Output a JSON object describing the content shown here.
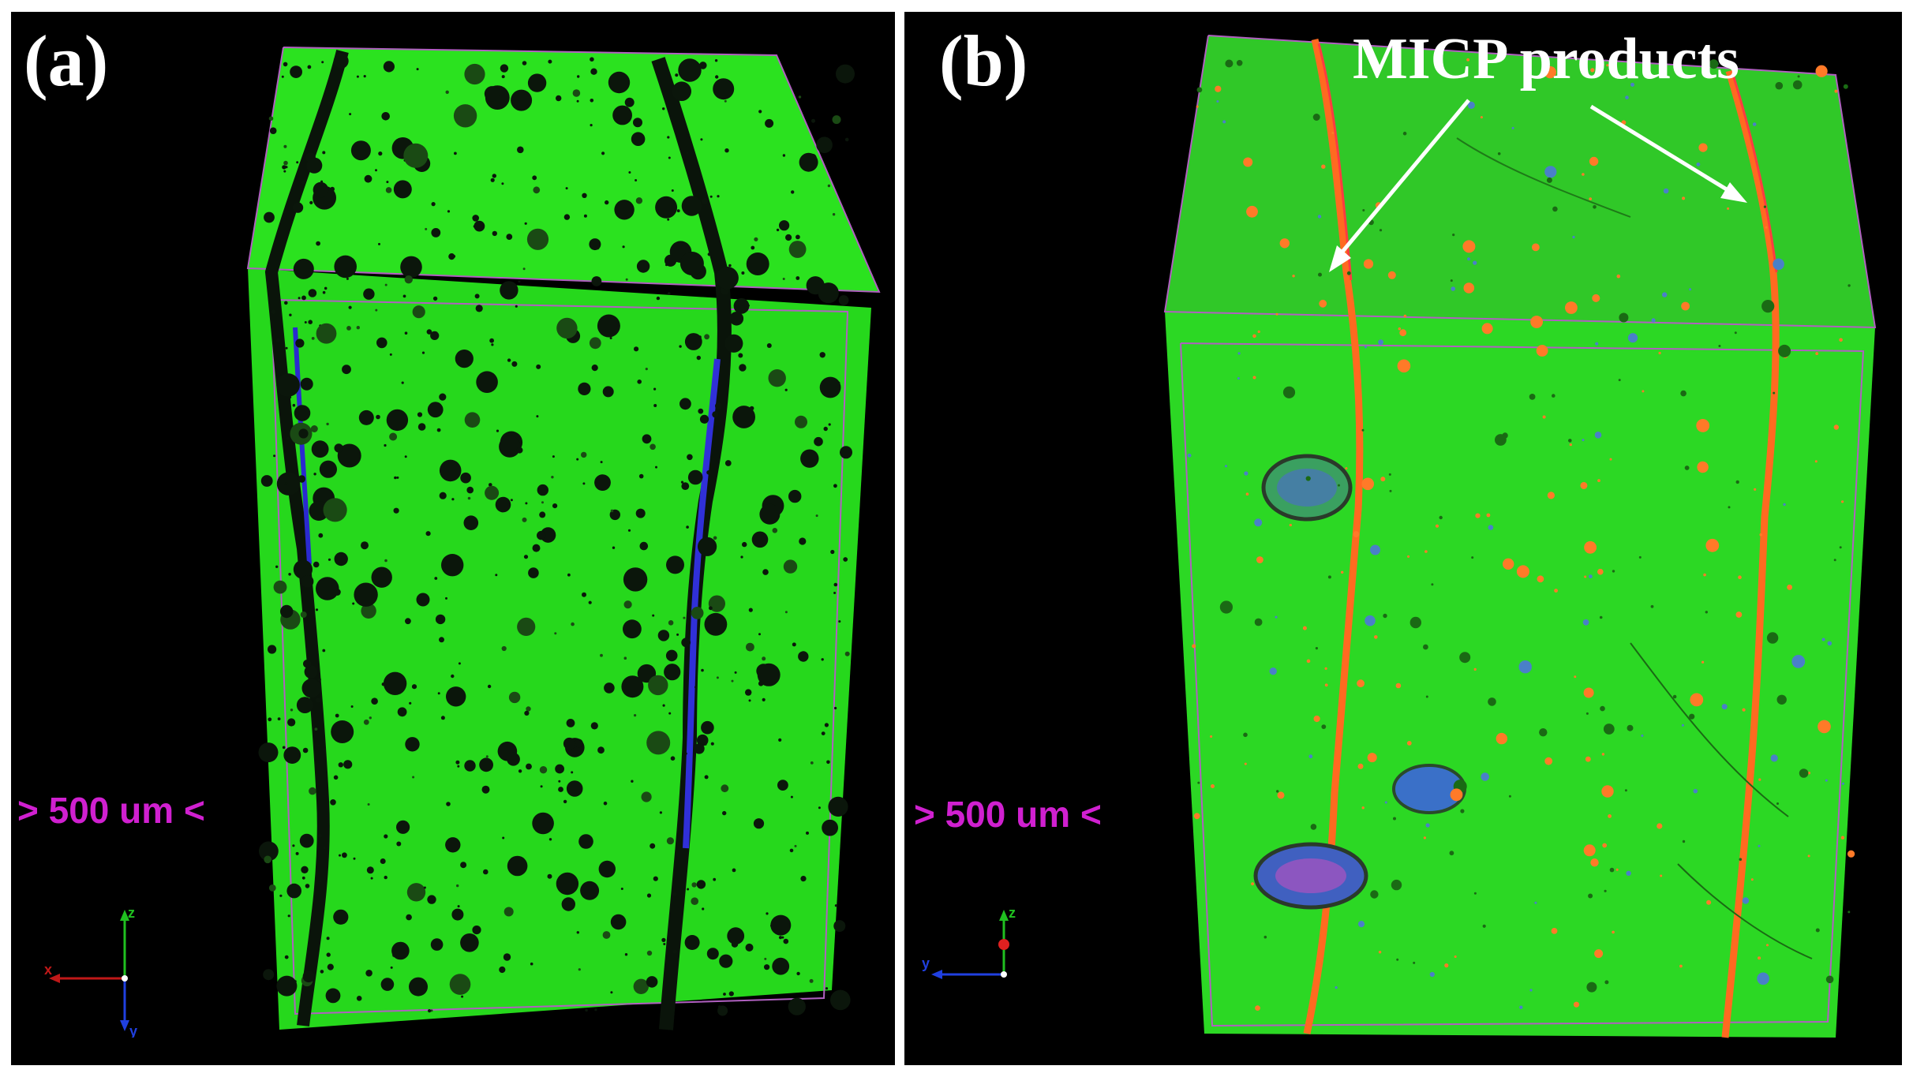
{
  "panel_a": {
    "label": "(a)",
    "scale_text": "> 500 um <",
    "axes": {
      "z": "z",
      "x": "x",
      "y": "y"
    }
  },
  "panel_b": {
    "label": "(b)",
    "scale_text": "> 500 um <",
    "annotation": "MICP products",
    "axes": {
      "z": "z",
      "y": "y"
    }
  },
  "colors": {
    "background": "#000000",
    "matrix": "#22e01a",
    "crack": "#0a1a0a",
    "crack_fill_a": "#2a2ad0",
    "micp": "#ff6a20",
    "scale": "#d020d0",
    "label": "#ffffff"
  }
}
